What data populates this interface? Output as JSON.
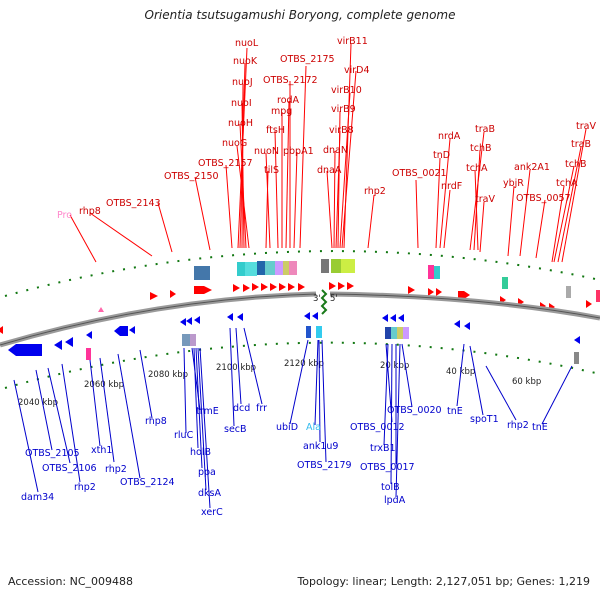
{
  "title": "Orientia tsutsugamushi Boryong, complete genome",
  "footer": {
    "accession": "Accession: NC_009488",
    "stats": "Topology: linear; Length: 2,127,051 bp; Genes: 1,219"
  },
  "origin_labels": {
    "left": "3'",
    "right": "5'"
  },
  "scale_ticks": [
    "2040 kbp",
    "2060 kbp",
    "2080 kbp",
    "2100 kbp",
    "2120 kbp",
    "20 kbp",
    "40 kbp",
    "60 kbp"
  ],
  "colors": {
    "forward": "#ff0000",
    "reverse": "#0000ee",
    "rna": "#ff66aa",
    "trna": "#33ccff",
    "backbone": "#888888",
    "dots": "#117711"
  },
  "top_labels": [
    "nuoL",
    "nuoK",
    "nuoJ",
    "nuoI",
    "nuoH",
    "nuoG",
    "OTBS_2157",
    "OTBS_2150",
    "OTBS_2143",
    "rhp8",
    "Pro",
    "OTBS_2175",
    "OTBS_2172",
    "rodA",
    "mpg",
    "ftsH",
    "nuoN",
    "tilS",
    "pbpA1",
    "virB11",
    "virD4",
    "virB10",
    "virB9",
    "virB8",
    "dnaN",
    "dnaA",
    "rhp2",
    "OTBS_0021",
    "nrdA",
    "tnD",
    "nrdF",
    "traB",
    "tchB",
    "tchA",
    "traV",
    "ank2A1",
    "ybjR",
    "OTBS_0057",
    "traV",
    "traB",
    "tchB",
    "tchA"
  ],
  "bottom_labels": [
    "dam34",
    "OTBS_2105",
    "OTBS_2106",
    "rhp2",
    "xth1",
    "rhp2",
    "OTBS_2124",
    "rhp8",
    "rluC",
    "trmE",
    "holB",
    "ppa",
    "dksA",
    "xerC",
    "dcd",
    "frr",
    "secB",
    "ubiD",
    "Ala",
    "ank1u9",
    "OTBS_2179",
    "OTBS_0012",
    "OTBS_0020",
    "trxB1",
    "OTBS_0017",
    "tolB",
    "lpdA",
    "tnE",
    "spoT1",
    "rhp2",
    "tnE"
  ]
}
